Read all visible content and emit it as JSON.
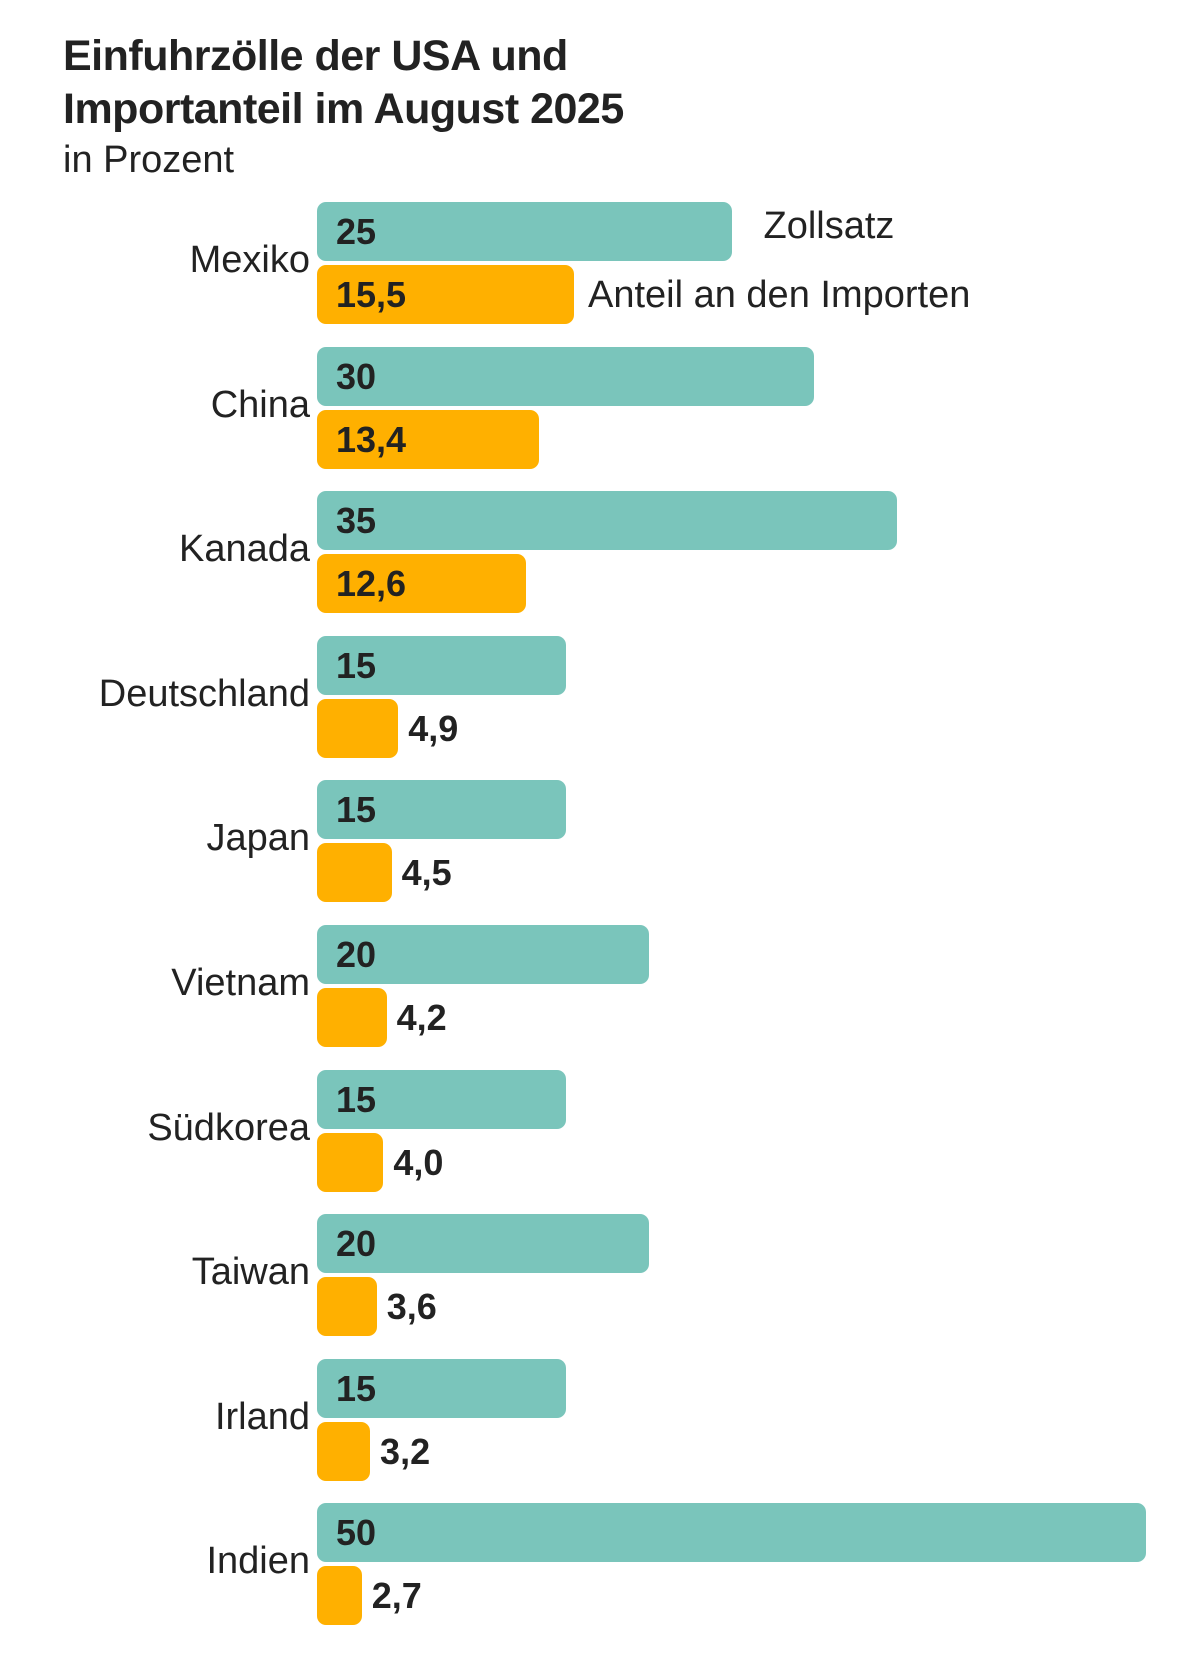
{
  "title_line1": "Einfuhrzölle der USA und",
  "title_line2": "Importanteil im August 2025",
  "subtitle": "in Prozent",
  "chart_data": {
    "type": "bar",
    "orientation": "horizontal",
    "title": "Einfuhrzölle der USA und Importanteil im August 2025",
    "subtitle": "in Prozent",
    "categories": [
      "Mexiko",
      "China",
      "Kanada",
      "Deutschland",
      "Japan",
      "Vietnam",
      "Südkorea",
      "Taiwan",
      "Irland",
      "Indien"
    ],
    "series": [
      {
        "name": "Zollsatz",
        "color": "#7ac5bb",
        "values": [
          25,
          30,
          35,
          15,
          15,
          20,
          15,
          20,
          15,
          50
        ],
        "labels": [
          "25",
          "30",
          "35",
          "15",
          "15",
          "20",
          "15",
          "20",
          "15",
          "50"
        ]
      },
      {
        "name": "Anteil an den Importen",
        "color": "#ffb000",
        "values": [
          15.5,
          13.4,
          12.6,
          4.9,
          4.5,
          4.2,
          4.0,
          3.6,
          3.2,
          2.7
        ],
        "labels": [
          "15,5",
          "13,4",
          "12,6",
          "4,9",
          "4,5",
          "4,2",
          "4,0",
          "3,6",
          "3,2",
          "2,7"
        ]
      }
    ],
    "legend_placement": "inline-right-of-first-group",
    "grid": false,
    "xlim": [
      0,
      50
    ]
  }
}
